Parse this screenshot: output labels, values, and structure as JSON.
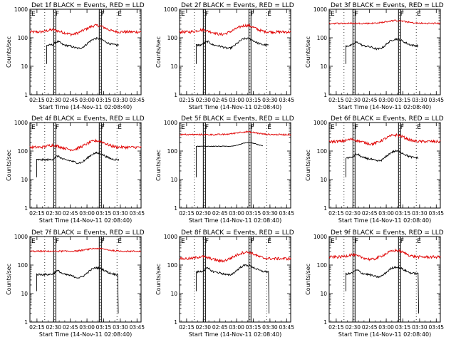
{
  "colors": {
    "events": "#000000",
    "lld": "#e00000",
    "axis": "#000000"
  },
  "chart_data": {
    "type": "line",
    "y_scale": "log",
    "ylim": [
      1,
      1000
    ],
    "y_ticks": [
      1,
      10,
      100,
      1000
    ],
    "y_tick_labels": [
      "1",
      "10",
      "100",
      "1000"
    ],
    "x_tick_labels": [
      "02:15",
      "02:30",
      "02:45",
      "03:00",
      "03:15",
      "03:30",
      "03:45"
    ],
    "xlabel": "Start Time (14-Nov-11 02:08:40)",
    "ylabel": "Counts/sec",
    "attenuator_marks": [
      {
        "time": "02:31",
        "label": "F"
      },
      {
        "time": "03:12",
        "label": "F"
      },
      {
        "time": "03:27",
        "label": "E"
      }
    ],
    "dotted_lines": [
      "02:22",
      "02:31",
      "03:12",
      "03:27"
    ],
    "legend_placement": "title",
    "panels": [
      {
        "title": "Det 1f BLACK = Events, RED = LLD",
        "events_start": 15,
        "events_end": 80,
        "events_level": 1.0,
        "lld_level": 1.0,
        "drop_end": false
      },
      {
        "title": "Det 2f BLACK = Events, RED = LLD",
        "events_start": 15,
        "events_end": 80,
        "events_level": 1.0,
        "lld_level": 1.0,
        "drop_end": false
      },
      {
        "title": "Det 3f BLACK = Events, RED = LLD",
        "events_start": 15,
        "events_end": 80,
        "events_level": 0.95,
        "lld_level": 2.2,
        "drop_end": false
      },
      {
        "title": "Det 4f BLACK = Events, RED = LLD",
        "events_start": 6,
        "events_end": 80,
        "events_level": 0.9,
        "lld_level": 0.85,
        "drop_end": false
      },
      {
        "title": "Det 5f BLACK = Events, RED = LLD",
        "events_start": 15,
        "events_end": 75,
        "events_level": 2.1,
        "lld_level": 2.6,
        "drop_end": false
      },
      {
        "title": "Det 6f BLACK = Events, RED = LLD",
        "events_start": 15,
        "events_end": 80,
        "events_level": 1.05,
        "lld_level": 1.35,
        "drop_end": false
      },
      {
        "title": "Det 7f BLACK = Events, RED = LLD",
        "events_start": 6,
        "events_end": 79,
        "events_level": 0.85,
        "lld_level": 2.1,
        "drop_end": true
      },
      {
        "title": "Det 8f BLACK = Events, RED = LLD",
        "events_start": 15,
        "events_end": 80,
        "events_level": 1.05,
        "lld_level": 1.05,
        "drop_end": true
      },
      {
        "title": "Det 9f BLACK = Events, RED = LLD",
        "events_start": 15,
        "events_end": 80,
        "events_level": 0.9,
        "lld_level": 1.2,
        "drop_end": true
      }
    ]
  }
}
